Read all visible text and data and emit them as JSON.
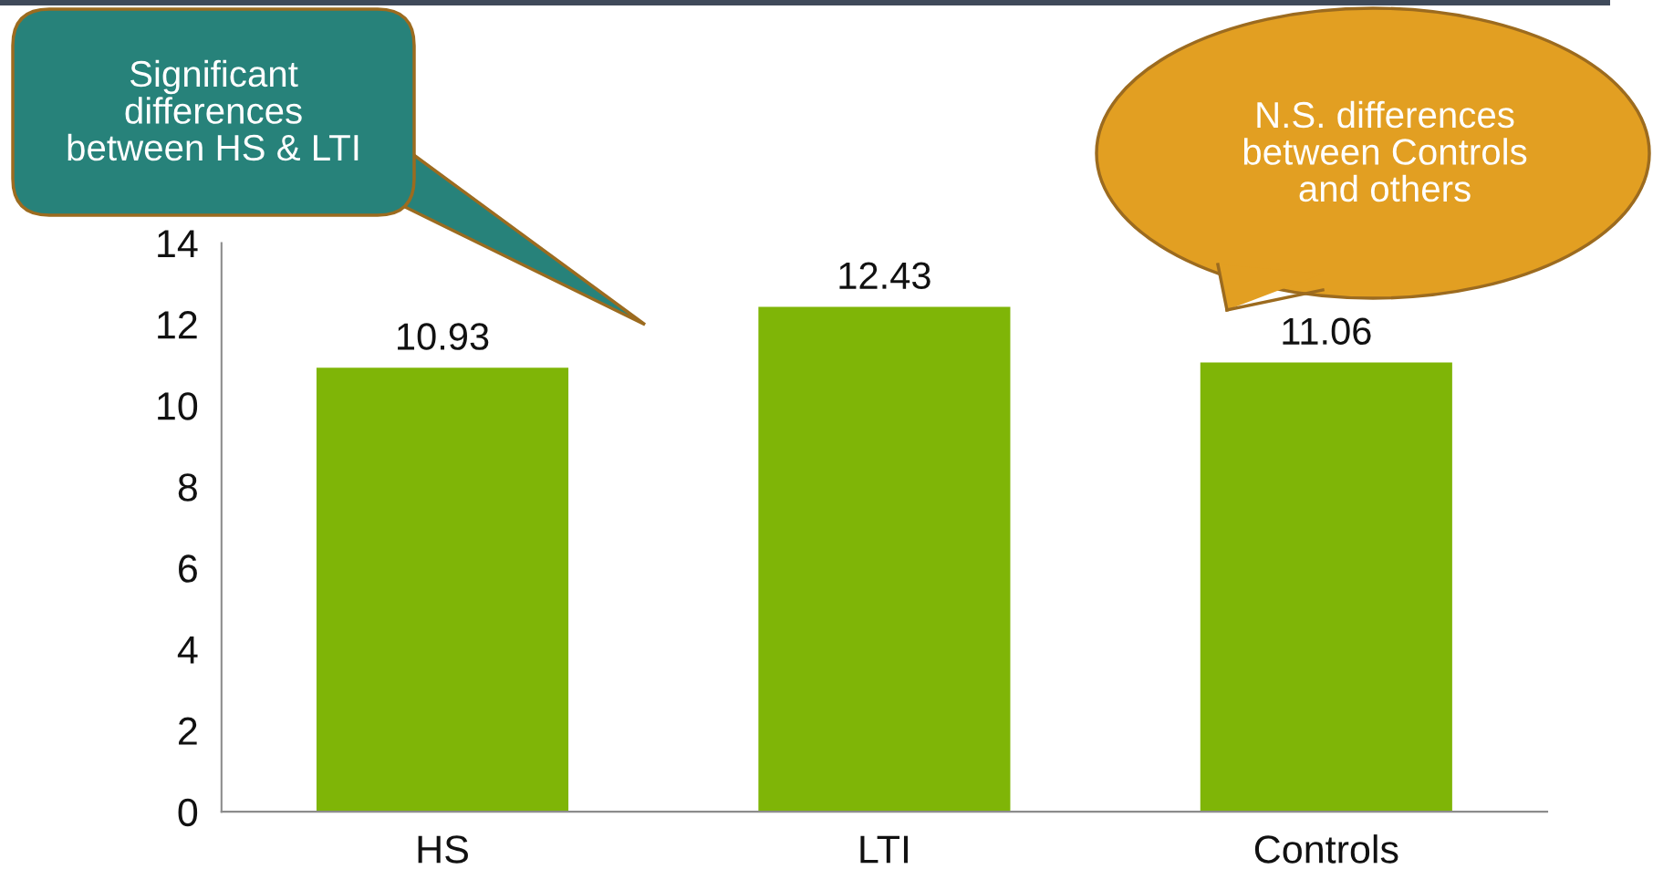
{
  "chart_data": {
    "type": "bar",
    "categories": [
      "HS",
      "LTI",
      "Controls"
    ],
    "values": [
      10.93,
      12.43,
      11.06
    ],
    "color": "#7fb507",
    "ylim": [
      0,
      14
    ],
    "yticks": [
      0,
      2,
      4,
      6,
      8,
      10,
      12,
      14
    ],
    "data_labels": true,
    "grid": false,
    "legend": false,
    "annotations": [
      "Significant\ndifferences\nbetween HS & LTI",
      "N.S. differences\nbetween Controls\nand others"
    ]
  }
}
